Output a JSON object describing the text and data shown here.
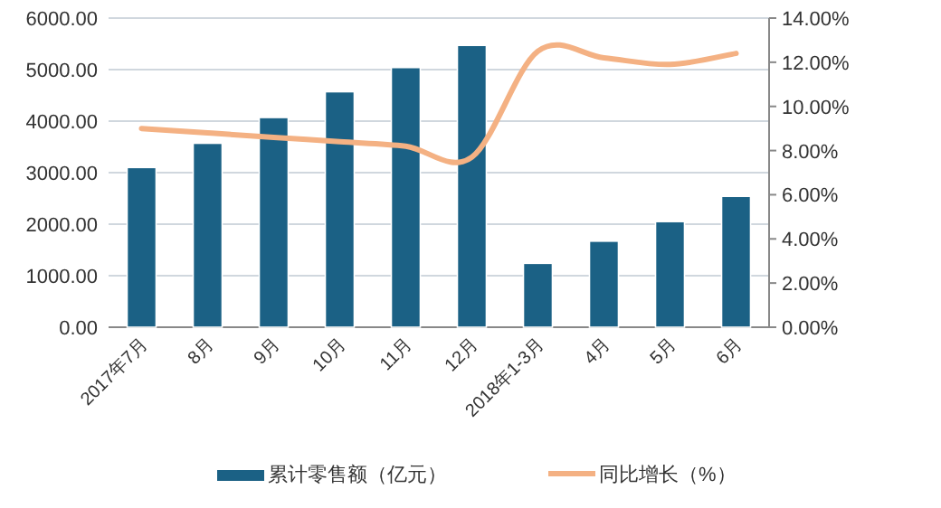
{
  "chart_data": {
    "type": "bar",
    "categories": [
      "2017年7月",
      "8月",
      "9月",
      "10月",
      "11月",
      "12月",
      "2018年1-3月",
      "4月",
      "5月",
      "6月"
    ],
    "series": [
      {
        "name": "累计零售额（亿元）",
        "color": "#1b6185",
        "values": [
          3100,
          3570,
          4070,
          4570,
          5040,
          5470,
          1240,
          1670,
          2050,
          2540
        ]
      },
      {
        "name": "同比增长（%）",
        "color": "#f4b183",
        "type": "line",
        "axis": "y2",
        "values": [
          9.0,
          8.8,
          8.6,
          8.4,
          8.2,
          7.7,
          12.5,
          12.2,
          11.9,
          12.4
        ]
      }
    ],
    "ylim": [
      0,
      6000
    ],
    "yticks": [
      {
        "value": 0,
        "label": "0.00"
      },
      {
        "value": 1000,
        "label": "1000.00"
      },
      {
        "value": 2000,
        "label": "2000.00"
      },
      {
        "value": 3000,
        "label": "3000.00"
      },
      {
        "value": 4000,
        "label": "4000.00"
      },
      {
        "value": 5000,
        "label": "5000.00"
      },
      {
        "value": 6000,
        "label": "6000.00"
      }
    ],
    "y2lim": [
      0,
      14
    ],
    "y2ticks": [
      {
        "value": 0,
        "label": "0.00%"
      },
      {
        "value": 2,
        "label": "2.00%"
      },
      {
        "value": 4,
        "label": "4.00%"
      },
      {
        "value": 6,
        "label": "6.00%"
      },
      {
        "value": 8,
        "label": "8.00%"
      },
      {
        "value": 10,
        "label": "10.00%"
      },
      {
        "value": 12,
        "label": "12.00%"
      },
      {
        "value": 14,
        "label": "14.00%"
      }
    ],
    "grid": "y",
    "legend": "bottom"
  }
}
